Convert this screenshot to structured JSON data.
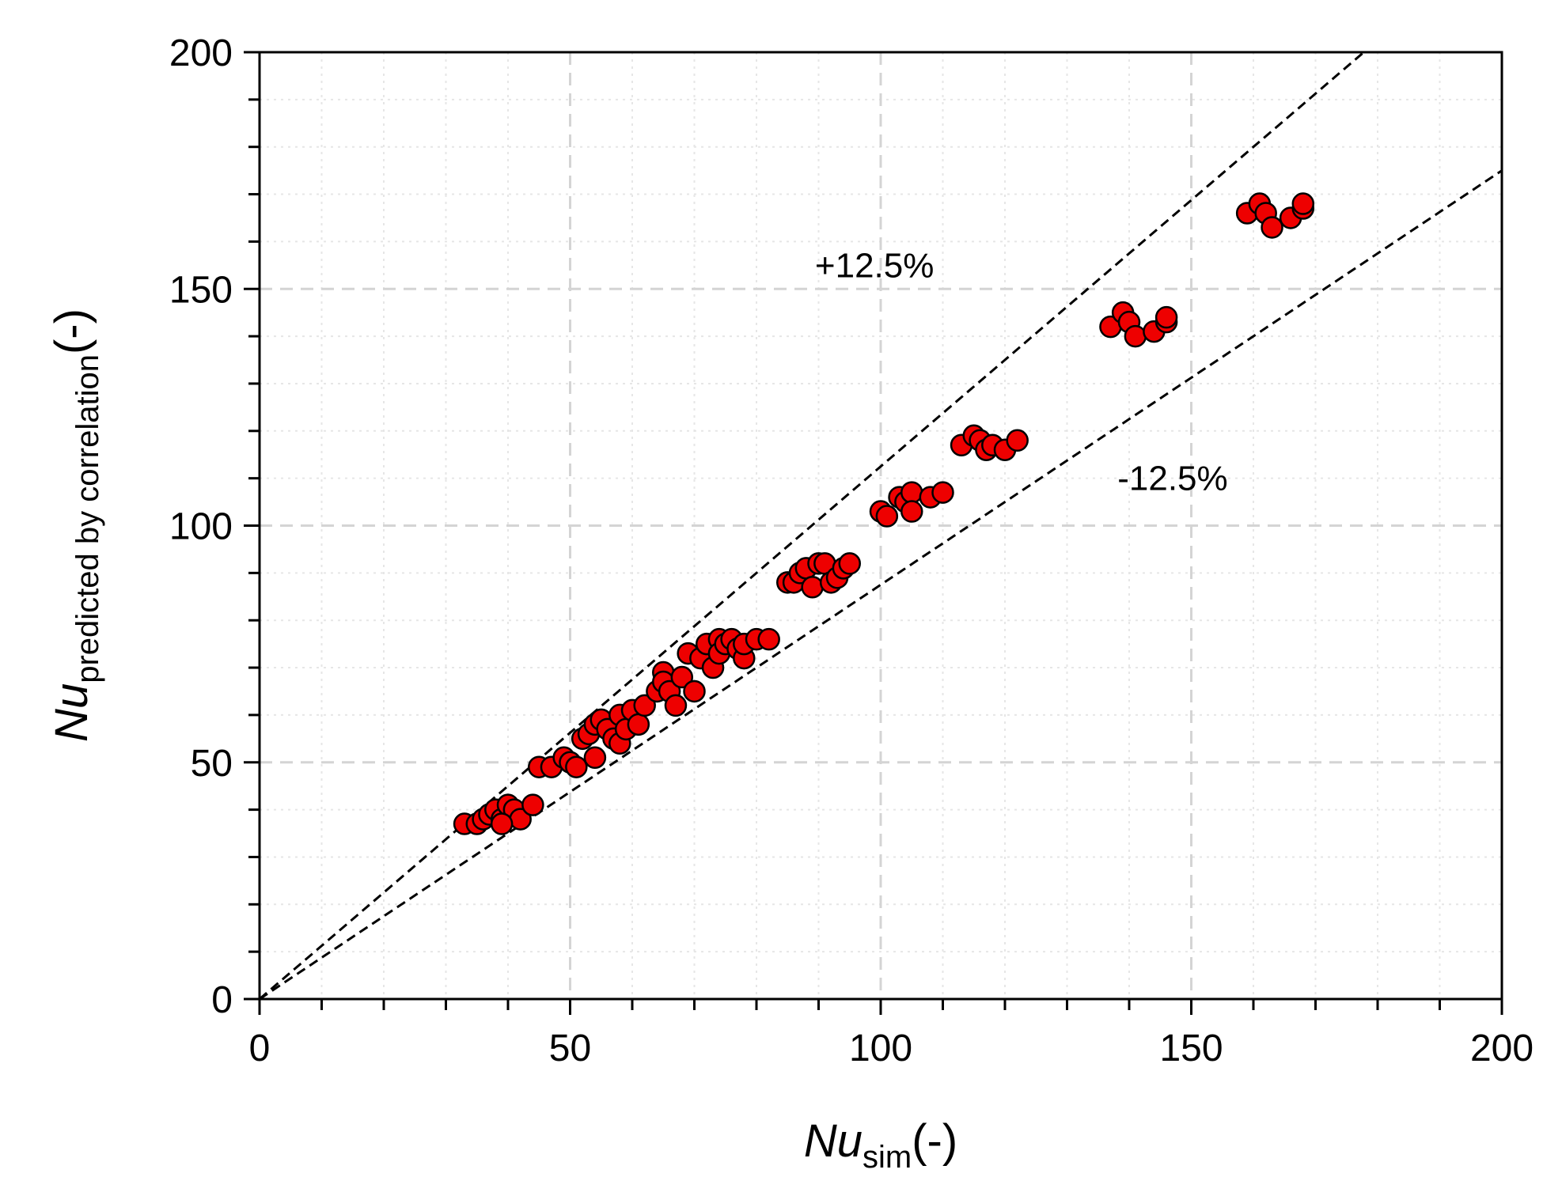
{
  "chart_data": {
    "type": "scatter",
    "xlabel": {
      "main": "Nu",
      "sub": "sim",
      "unit": "(-)"
    },
    "ylabel": {
      "main": "Nu",
      "sub": "predicted by correlation",
      "unit": "(-)"
    },
    "xlim": [
      0,
      200
    ],
    "ylim": [
      0,
      200
    ],
    "major_step": 50,
    "minor_step": 10,
    "x_ticks": [
      0,
      50,
      100,
      150,
      200
    ],
    "y_ticks": [
      0,
      50,
      100,
      150,
      200
    ],
    "grid": true,
    "legend": "none",
    "reference_lines": [
      {
        "label": "+12.5%",
        "slope": 1.125,
        "label_x": 99,
        "label_y": 155
      },
      {
        "label": "-12.5%",
        "slope": 0.875,
        "label_x": 147,
        "label_y": 110
      }
    ],
    "marker": {
      "fill": "#ee0000",
      "stroke": "#000000"
    },
    "series": [
      {
        "points": [
          [
            33,
            37
          ],
          [
            35,
            37
          ],
          [
            36,
            38
          ],
          [
            37,
            39
          ],
          [
            38,
            40
          ],
          [
            39,
            38
          ],
          [
            40,
            41
          ],
          [
            41,
            40
          ],
          [
            42,
            38
          ],
          [
            44,
            41
          ],
          [
            39,
            37
          ],
          [
            45,
            49
          ],
          [
            47,
            49
          ],
          [
            49,
            51
          ],
          [
            50,
            50
          ],
          [
            51,
            49
          ],
          [
            52,
            55
          ],
          [
            53,
            56
          ],
          [
            54,
            58
          ],
          [
            54,
            51
          ],
          [
            55,
            59
          ],
          [
            56,
            57
          ],
          [
            57,
            55
          ],
          [
            58,
            60
          ],
          [
            58,
            54
          ],
          [
            59,
            57
          ],
          [
            60,
            61
          ],
          [
            61,
            58
          ],
          [
            62,
            62
          ],
          [
            64,
            65
          ],
          [
            65,
            69
          ],
          [
            65,
            67
          ],
          [
            66,
            65
          ],
          [
            67,
            62
          ],
          [
            68,
            68
          ],
          [
            69,
            73
          ],
          [
            70,
            65
          ],
          [
            71,
            72
          ],
          [
            72,
            75
          ],
          [
            73,
            70
          ],
          [
            74,
            76
          ],
          [
            74,
            73
          ],
          [
            75,
            75
          ],
          [
            76,
            76
          ],
          [
            77,
            74
          ],
          [
            78,
            72
          ],
          [
            78,
            75
          ],
          [
            80,
            76
          ],
          [
            82,
            76
          ],
          [
            85,
            88
          ],
          [
            86,
            88
          ],
          [
            87,
            90
          ],
          [
            88,
            91
          ],
          [
            89,
            87
          ],
          [
            90,
            92
          ],
          [
            91,
            92
          ],
          [
            92,
            88
          ],
          [
            93,
            89
          ],
          [
            94,
            91
          ],
          [
            95,
            92
          ],
          [
            100,
            103
          ],
          [
            101,
            102
          ],
          [
            103,
            106
          ],
          [
            104,
            105
          ],
          [
            105,
            107
          ],
          [
            105,
            103
          ],
          [
            108,
            106
          ],
          [
            110,
            107
          ],
          [
            113,
            117
          ],
          [
            115,
            119
          ],
          [
            116,
            118
          ],
          [
            117,
            116
          ],
          [
            118,
            117
          ],
          [
            120,
            116
          ],
          [
            122,
            118
          ],
          [
            137,
            142
          ],
          [
            139,
            145
          ],
          [
            140,
            143
          ],
          [
            141,
            140
          ],
          [
            144,
            141
          ],
          [
            146,
            143
          ],
          [
            146,
            144
          ],
          [
            159,
            166
          ],
          [
            161,
            168
          ],
          [
            162,
            166
          ],
          [
            163,
            163
          ],
          [
            166,
            165
          ],
          [
            168,
            167
          ],
          [
            168,
            168
          ]
        ]
      }
    ],
    "annotations": [
      {
        "text": "+12.5%",
        "x": 99,
        "y": 155
      },
      {
        "text": "-12.5%",
        "x": 147,
        "y": 110
      }
    ]
  }
}
